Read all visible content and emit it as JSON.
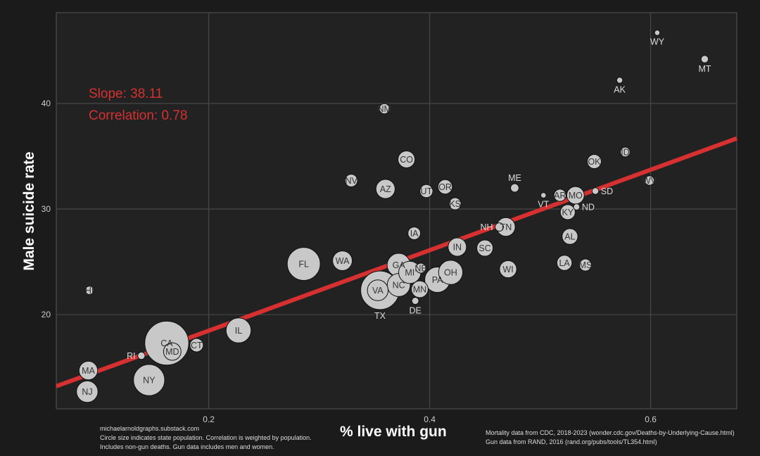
{
  "chart_data": {
    "type": "scatter",
    "xlabel": "% live with gun",
    "ylabel": "Male suicide rate",
    "xlim": [
      0.062,
      0.678
    ],
    "ylim": [
      11.07,
      48.6
    ],
    "xticks": [
      0.2,
      0.4,
      0.6
    ],
    "xtick_labels": [
      "0.2",
      "0.4",
      "0.6"
    ],
    "yticks": [
      20,
      30,
      40
    ],
    "ytick_labels": [
      "20",
      "30",
      "40"
    ],
    "grid": true,
    "point_color": "#c8c8c8",
    "fit_line": {
      "slope": 38.11,
      "intercept": 10.85,
      "color": "#d63031"
    },
    "annotations": [
      "Slope: 38.11",
      "Correlation: 0.78"
    ],
    "points": [
      {
        "label": "HI",
        "x": 0.092,
        "y": 22.3,
        "pop": 1.4
      },
      {
        "label": "MA",
        "x": 0.091,
        "y": 14.7,
        "pop": 7.0
      },
      {
        "label": "NJ",
        "x": 0.09,
        "y": 12.7,
        "pop": 9.3
      },
      {
        "label": "RI",
        "x": 0.139,
        "y": 16.1,
        "pop": 1.1
      },
      {
        "label": "NY",
        "x": 0.146,
        "y": 13.8,
        "pop": 19.7
      },
      {
        "label": "CA",
        "x": 0.162,
        "y": 17.3,
        "pop": 39.0
      },
      {
        "label": "MD",
        "x": 0.167,
        "y": 16.5,
        "pop": 6.2
      },
      {
        "label": "CT",
        "x": 0.189,
        "y": 17.1,
        "pop": 3.6
      },
      {
        "label": "IL",
        "x": 0.227,
        "y": 18.5,
        "pop": 12.6
      },
      {
        "label": "FL",
        "x": 0.286,
        "y": 24.8,
        "pop": 22.0
      },
      {
        "label": "WA",
        "x": 0.321,
        "y": 25.1,
        "pop": 7.8
      },
      {
        "label": "NV",
        "x": 0.329,
        "y": 32.7,
        "pop": 3.2
      },
      {
        "label": "AZ",
        "x": 0.36,
        "y": 31.9,
        "pop": 7.4
      },
      {
        "label": "NM",
        "x": 0.359,
        "y": 39.5,
        "pop": 2.1
      },
      {
        "label": "CO",
        "x": 0.379,
        "y": 34.7,
        "pop": 5.8
      },
      {
        "label": "UT",
        "x": 0.397,
        "y": 31.7,
        "pop": 3.4
      },
      {
        "label": "OR",
        "x": 0.414,
        "y": 32.1,
        "pop": 4.2
      },
      {
        "label": "KS",
        "x": 0.423,
        "y": 30.5,
        "pop": 2.9
      },
      {
        "label": "IA",
        "x": 0.386,
        "y": 27.7,
        "pop": 3.2
      },
      {
        "label": "TX",
        "x": 0.355,
        "y": 22.3,
        "pop": 30.0
      },
      {
        "label": "VA",
        "x": 0.353,
        "y": 22.3,
        "pop": 8.7
      },
      {
        "label": "NC",
        "x": 0.372,
        "y": 22.8,
        "pop": 10.7
      },
      {
        "label": "GA",
        "x": 0.372,
        "y": 24.7,
        "pop": 10.9
      },
      {
        "label": "MI",
        "x": 0.382,
        "y": 24.0,
        "pop": 10.0
      },
      {
        "label": "NE",
        "x": 0.392,
        "y": 24.4,
        "pop": 2.0
      },
      {
        "label": "PA",
        "x": 0.407,
        "y": 23.3,
        "pop": 13.0
      },
      {
        "label": "MN",
        "x": 0.391,
        "y": 22.4,
        "pop": 5.7
      },
      {
        "label": "DE",
        "x": 0.387,
        "y": 21.3,
        "pop": 1.0
      },
      {
        "label": "OH",
        "x": 0.419,
        "y": 24.0,
        "pop": 11.8
      },
      {
        "label": "IN",
        "x": 0.425,
        "y": 26.4,
        "pop": 6.8
      },
      {
        "label": "SC",
        "x": 0.45,
        "y": 26.3,
        "pop": 5.3
      },
      {
        "label": "NH",
        "x": 0.463,
        "y": 28.3,
        "pop": 1.4
      },
      {
        "label": "TN",
        "x": 0.469,
        "y": 28.3,
        "pop": 7.0
      },
      {
        "label": "WI",
        "x": 0.471,
        "y": 24.3,
        "pop": 5.9
      },
      {
        "label": "ME",
        "x": 0.477,
        "y": 32.0,
        "pop": 1.4
      },
      {
        "label": "VT",
        "x": 0.503,
        "y": 31.3,
        "pop": 0.6
      },
      {
        "label": "AR",
        "x": 0.518,
        "y": 31.3,
        "pop": 3.0
      },
      {
        "label": "MO",
        "x": 0.532,
        "y": 31.3,
        "pop": 6.2
      },
      {
        "label": "KY",
        "x": 0.525,
        "y": 29.7,
        "pop": 4.5
      },
      {
        "label": "ND",
        "x": 0.533,
        "y": 30.2,
        "pop": 0.8
      },
      {
        "label": "SD",
        "x": 0.55,
        "y": 31.7,
        "pop": 0.9
      },
      {
        "label": "AL",
        "x": 0.527,
        "y": 27.4,
        "pop": 5.0
      },
      {
        "label": "LA",
        "x": 0.522,
        "y": 24.9,
        "pop": 4.6
      },
      {
        "label": "MS",
        "x": 0.541,
        "y": 24.7,
        "pop": 2.9
      },
      {
        "label": "OK",
        "x": 0.549,
        "y": 34.5,
        "pop": 4.0
      },
      {
        "label": "ID",
        "x": 0.577,
        "y": 35.4,
        "pop": 1.9
      },
      {
        "label": "WV",
        "x": 0.599,
        "y": 32.7,
        "pop": 1.8
      },
      {
        "label": "AK",
        "x": 0.572,
        "y": 42.2,
        "pop": 0.73
      },
      {
        "label": "MT",
        "x": 0.649,
        "y": 44.2,
        "pop": 1.1
      },
      {
        "label": "WY",
        "x": 0.606,
        "y": 46.7,
        "pop": 0.58
      }
    ]
  },
  "footer": {
    "left": [
      "michaelarnoldgraphs.substack.com",
      "Circle size indicates state population. Correlation is weighted by population.",
      "Includes non-gun deaths. Gun data includes men and women."
    ],
    "right": [
      "Mortality data from CDC, 2018-2023 (wonder.cdc.gov/Deaths-by-Underlying-Cause.html)",
      "Gun data from RAND, 2016 (rand.org/pubs/tools/TL354.html)"
    ]
  }
}
